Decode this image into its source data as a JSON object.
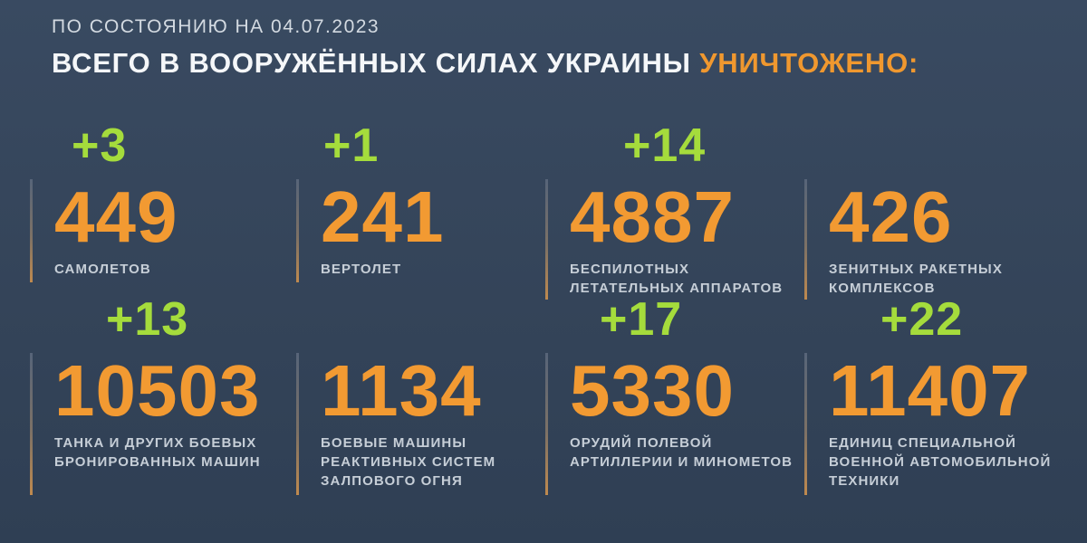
{
  "header": {
    "date_line": "ПО СОСТОЯНИЮ НА 04.07.2023",
    "title_white": "ВСЕГО В ВООРУЖЁННЫХ СИЛАХ УКРАИНЫ",
    "title_accent": "УНИЧТОЖЕНО:"
  },
  "colors": {
    "background": "#344459",
    "number_orange": "#f29a32",
    "delta_green": "#a5dc3c",
    "title_white": "#f5f7f9",
    "label_gray": "#c6ced7",
    "divider_top": "#566479",
    "divider_bottom": "#c08a4e"
  },
  "stats": [
    {
      "delta": "+3",
      "value": "449",
      "label_lines": [
        "САМОЛЕТОВ"
      ]
    },
    {
      "delta": "+1",
      "value": "241",
      "label_lines": [
        "ВЕРТОЛЕТ"
      ]
    },
    {
      "delta": "+14",
      "value": "4887",
      "label_lines": [
        "БЕСПИЛОТНЫХ",
        "ЛЕТАТЕЛЬНЫХ АППАРАТОВ"
      ]
    },
    {
      "delta": null,
      "value": "426",
      "label_lines": [
        "ЗЕНИТНЫХ РАКЕТНЫХ",
        "КОМПЛЕКСОВ"
      ]
    },
    {
      "delta": "+13",
      "value": "10503",
      "label_lines": [
        "ТАНКА И ДРУГИХ БОЕВЫХ",
        "БРОНИРОВАННЫХ МАШИН"
      ]
    },
    {
      "delta": null,
      "value": "1134",
      "label_lines": [
        "БОЕВЫЕ МАШИНЫ",
        "РЕАКТИВНЫХ СИСТЕМ",
        "ЗАЛПОВОГО ОГНЯ"
      ]
    },
    {
      "delta": "+17",
      "value": "5330",
      "label_lines": [
        "ОРУДИЙ ПОЛЕВОЙ",
        "АРТИЛЛЕРИИ И МИНОМЕТОВ"
      ]
    },
    {
      "delta": "+22",
      "value": "11407",
      "label_lines": [
        "ЕДИНИЦ СПЕЦИАЛЬНОЙ",
        "ВОЕННОЙ АВТОМОБИЛЬНОЙ",
        "ТЕХНИКИ"
      ]
    }
  ],
  "chart_data": {
    "type": "table",
    "title": "ВСЕГО В ВООРУЖЁННЫХ СИЛАХ УКРАИНЫ УНИЧТОЖЕНО:",
    "subtitle": "ПО СОСТОЯНИЮ НА 04.07.2023",
    "categories": [
      "самолетов",
      "вертолет",
      "беспилотных летательных аппаратов",
      "зенитных ракетных комплексов",
      "танка и других боевых бронированных машин",
      "боевые машины реактивных систем залпового огня",
      "орудий полевой артиллерии и минометов",
      "единиц специальной военной автомобильной техники"
    ],
    "values": [
      449,
      241,
      4887,
      426,
      10503,
      1134,
      5330,
      11407
    ],
    "daily_increments": [
      3,
      1,
      14,
      null,
      13,
      null,
      17,
      22
    ],
    "layout": "2 rows x 4 columns, increments in green above orange totals"
  }
}
